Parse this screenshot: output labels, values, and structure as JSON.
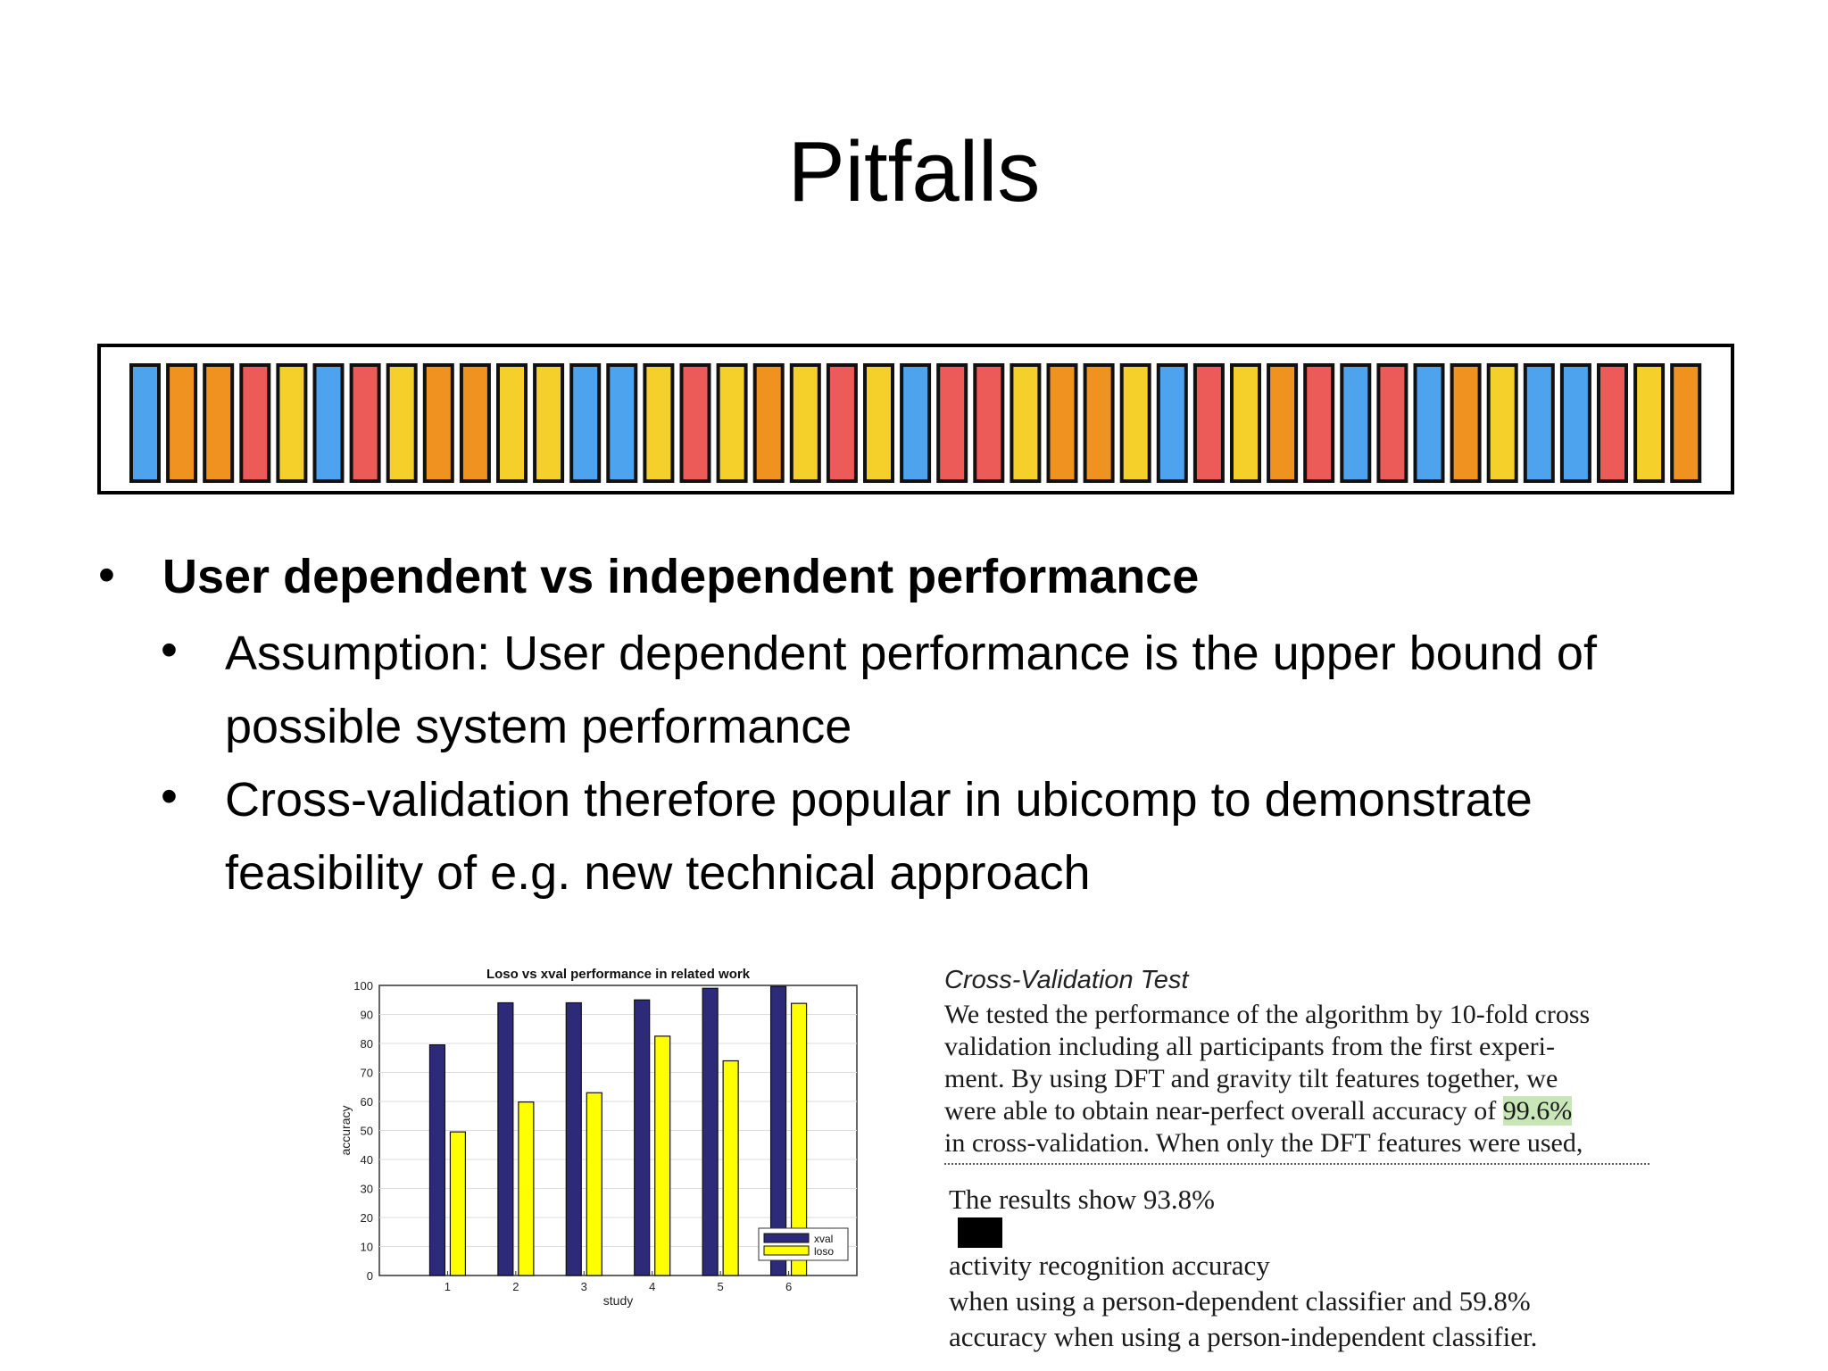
{
  "slide": {
    "title": "Pitfalls"
  },
  "strip": {
    "colors": {
      "blue": "#4da3ee",
      "orange": "#f0921f",
      "red": "#ec5b58",
      "yellow": "#f6d02a",
      "outline": "#111111"
    },
    "sequence": [
      "blue",
      "orange",
      "orange",
      "red",
      "yellow",
      "blue",
      "red",
      "yellow",
      "orange",
      "orange",
      "yellow",
      "yellow",
      "blue",
      "blue",
      "yellow",
      "red",
      "yellow",
      "orange",
      "yellow",
      "red",
      "yellow",
      "blue",
      "red",
      "red",
      "yellow",
      "orange",
      "orange",
      "yellow",
      "blue",
      "red",
      "yellow",
      "orange",
      "red",
      "blue",
      "red",
      "blue",
      "orange",
      "yellow",
      "blue",
      "blue",
      "red",
      "yellow",
      "orange"
    ]
  },
  "bullets": {
    "main": "User dependent vs independent performance",
    "sub1_line1": "Assumption: User dependent performance is the upper bound of",
    "sub1_line2": "possible system performance",
    "sub2_line1": "Cross-validation therefore popular in ubicomp to demonstrate",
    "sub2_line2": "feasibility of e.g. new technical approach",
    "bullet_char": "•"
  },
  "chart_data": {
    "type": "bar",
    "title": "Loso vs xval performance in related work",
    "xlabel": "study",
    "ylabel": "accuracy",
    "categories": [
      "1",
      "2",
      "3",
      "4",
      "5",
      "6"
    ],
    "ylim": [
      0,
      100
    ],
    "yticks": [
      0,
      10,
      20,
      30,
      40,
      50,
      60,
      70,
      80,
      90,
      100
    ],
    "grid": true,
    "legend_position": "bottom-right",
    "series": [
      {
        "name": "xval",
        "color": "#2e2a7a",
        "values": [
          79.5,
          94,
          94,
          95,
          99,
          99.6
        ]
      },
      {
        "name": "loso",
        "color": "#ffff00",
        "values": [
          49.5,
          59.8,
          63,
          82.5,
          74,
          93.8
        ]
      }
    ]
  },
  "paper_excerpt": {
    "heading": "Cross-Validation Test",
    "line1": "We tested the performance of the algorithm by 10-fold cross",
    "line2": "validation including all participants from the first experi-",
    "line3": "ment. By using DFT and gravity tilt features together, we",
    "line4_pre": "were able to obtain near-perfect overall accuracy of ",
    "line4_hl": "99.6%",
    "line5": "in cross-validation. When only the DFT features were used,",
    "highlight_color": "#c8e6b8"
  },
  "paper_excerpt2": {
    "line1_pre": "The results show 93.8%",
    "line1_post": "activity recognition accuracy",
    "line2": "when using a person-dependent classifier and 59.8%",
    "line3": "accuracy when using a person-independent classifier."
  }
}
